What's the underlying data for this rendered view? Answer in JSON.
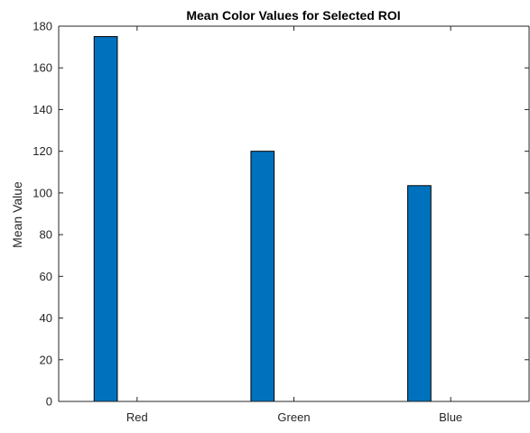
{
  "chart_data": {
    "type": "bar",
    "title": "Mean Color Values for Selected ROI",
    "xlabel": "",
    "ylabel": "Mean Value",
    "categories": [
      "Red",
      "Green",
      "Blue"
    ],
    "values": [
      175,
      120,
      103.5
    ],
    "ylim": [
      0,
      180
    ],
    "yticks": [
      0,
      20,
      40,
      60,
      80,
      100,
      120,
      140,
      160,
      180
    ],
    "grid": false,
    "bar_color": "#0072BD",
    "bar_edge_color": "#000000",
    "axis_color": "#262626"
  }
}
